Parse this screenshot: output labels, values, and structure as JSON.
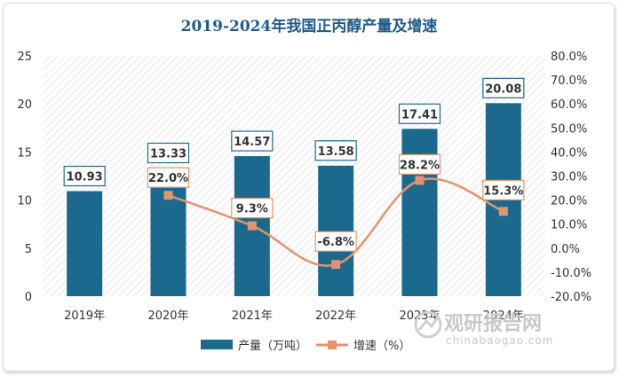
{
  "chart_data": {
    "type": "bar+line",
    "title": "2019-2024年我国正丙醇产量及增速",
    "categories": [
      "2019年",
      "2020年",
      "2021年",
      "2022年",
      "2023年",
      "2024年"
    ],
    "series": [
      {
        "name": "产量（万吨）",
        "type": "bar",
        "axis": "left",
        "values": [
          10.93,
          13.33,
          14.57,
          13.58,
          17.41,
          20.08
        ],
        "labels": [
          "10.93",
          "13.33",
          "14.57",
          "13.58",
          "17.41",
          "20.08"
        ],
        "color": "#1b6a8e"
      },
      {
        "name": "增速（%）",
        "type": "line",
        "axis": "right",
        "values": [
          null,
          22.0,
          9.3,
          -6.8,
          28.2,
          15.3
        ],
        "labels": [
          "",
          "22.0%",
          "9.3%",
          "-6.8%",
          "28.2%",
          "15.3%"
        ],
        "color": "#e5936c"
      }
    ],
    "y_left": {
      "range": [
        0,
        25
      ],
      "ticks": [
        "0",
        "5",
        "10",
        "15",
        "20",
        "25"
      ]
    },
    "y_right": {
      "range": [
        -20,
        80
      ],
      "ticks": [
        "-20.0%",
        "-10.0%",
        "0.0%",
        "10.0%",
        "20.0%",
        "30.0%",
        "40.0%",
        "50.0%",
        "60.0%",
        "70.0%",
        "80.0%"
      ]
    },
    "legend_position": "bottom",
    "grid": false
  },
  "watermark": {
    "main": "观研报告网",
    "sub": "chinabaogao.com"
  }
}
